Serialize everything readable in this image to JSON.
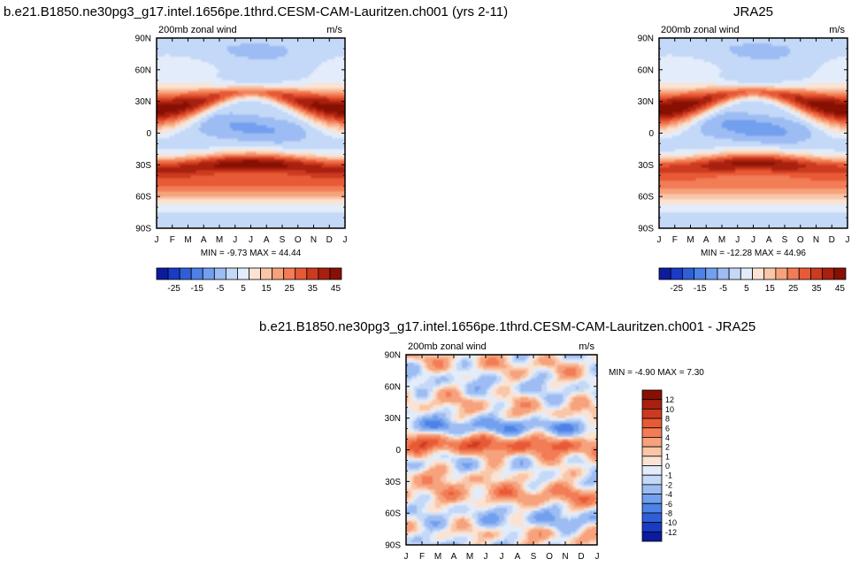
{
  "colors": {
    "blues": [
      "#0c1b9e",
      "#1a3bc4",
      "#2f5fd8",
      "#4d82e6",
      "#729fee",
      "#9cbcf3",
      "#c4d8f7",
      "#e3ecfa"
    ],
    "reds": [
      "#fbe3d3",
      "#f9c6a8",
      "#f6a27c",
      "#f27c55",
      "#e85a35",
      "#cc3a20",
      "#a8200e",
      "#871003"
    ]
  },
  "chart_data": [
    {
      "id": "model",
      "type": "heatmap",
      "title": "b.e21.B1850.ne30pg3_g17.intel.1656pe.1thrd.CESM-CAM-Lauritzen.ch001 (yrs 2-11)",
      "panel_left_label": "200mb zonal wind",
      "panel_right_label": "m/s",
      "x_ticks": [
        "J",
        "F",
        "M",
        "A",
        "M",
        "J",
        "J",
        "A",
        "S",
        "O",
        "N",
        "D",
        "J"
      ],
      "y_ticks": [
        "90N",
        "60N",
        "30N",
        "0",
        "30S",
        "60S",
        "90S"
      ],
      "x_range": [
        0,
        12
      ],
      "y_range": [
        90,
        -90
      ],
      "stats": "MIN = -9.73 MAX = 44.44",
      "colorbar": {
        "orientation": "horizontal",
        "levels": [
          -30,
          -25,
          -20,
          -15,
          -10,
          -5,
          0,
          5,
          10,
          15,
          20,
          25,
          30,
          35,
          40,
          45
        ],
        "labels": [
          "-25",
          "-15",
          "-5",
          "5",
          "15",
          "25",
          "35",
          "45"
        ]
      }
    },
    {
      "id": "obs",
      "type": "heatmap",
      "title": "JRA25",
      "panel_left_label": "200mb zonal wind",
      "panel_right_label": "m/s",
      "x_ticks": [
        "J",
        "F",
        "M",
        "A",
        "M",
        "J",
        "J",
        "A",
        "S",
        "O",
        "N",
        "D",
        "J"
      ],
      "y_ticks": [
        "90N",
        "60N",
        "30N",
        "0",
        "30S",
        "60S",
        "90S"
      ],
      "x_range": [
        0,
        12
      ],
      "y_range": [
        90,
        -90
      ],
      "stats": "MIN = -12.28 MAX = 44.96",
      "colorbar": {
        "orientation": "horizontal",
        "levels": [
          -30,
          -25,
          -20,
          -15,
          -10,
          -5,
          0,
          5,
          10,
          15,
          20,
          25,
          30,
          35,
          40,
          45
        ],
        "labels": [
          "-25",
          "-15",
          "-5",
          "5",
          "15",
          "25",
          "35",
          "45"
        ]
      }
    },
    {
      "id": "diff",
      "type": "heatmap",
      "title": "b.e21.B1850.ne30pg3_g17.intel.1656pe.1thrd.CESM-CAM-Lauritzen.ch001 - JRA25",
      "panel_left_label": "200mb zonal wind",
      "panel_right_label": "m/s",
      "x_ticks": [
        "J",
        "F",
        "M",
        "A",
        "M",
        "J",
        "J",
        "A",
        "S",
        "O",
        "N",
        "D",
        "J"
      ],
      "y_ticks": [
        "90N",
        "60N",
        "30N",
        "0",
        "30S",
        "60S",
        "90S"
      ],
      "x_range": [
        0,
        12
      ],
      "y_range": [
        90,
        -90
      ],
      "stats": "MIN = -4.90 MAX =  7.30",
      "colorbar": {
        "orientation": "vertical",
        "levels": [
          12,
          10,
          8,
          6,
          4,
          2,
          1,
          0,
          -1,
          -2,
          -4,
          -6,
          -8,
          -10,
          -12
        ],
        "labels": [
          "12",
          "10",
          "8",
          "6",
          "4",
          "2",
          "1",
          "0",
          "-1",
          "-2",
          "-4",
          "-6",
          "-8",
          "-10",
          "-12"
        ]
      }
    }
  ]
}
